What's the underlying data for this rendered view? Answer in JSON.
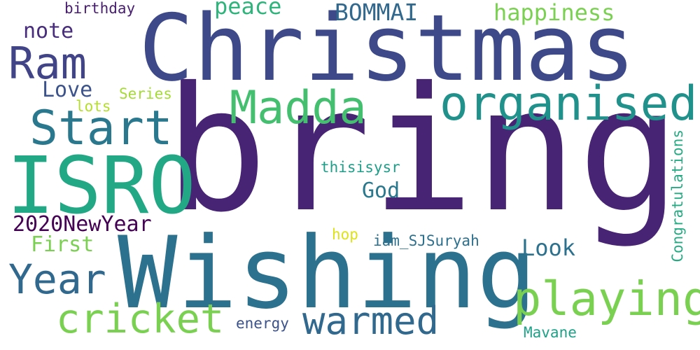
{
  "cloud": {
    "words": [
      {
        "text": "bring",
        "color": "#482475"
      },
      {
        "text": "Christmas",
        "color": "#3e4989"
      },
      {
        "text": "Wishing",
        "color": "#2c718e"
      },
      {
        "text": "ISRO",
        "color": "#22a884"
      },
      {
        "text": "organised",
        "color": "#21918c"
      },
      {
        "text": "Madda",
        "color": "#44bf70"
      },
      {
        "text": "Start",
        "color": "#2a788e"
      },
      {
        "text": "Ram",
        "color": "#414487"
      },
      {
        "text": "playing",
        "color": "#7ad151"
      },
      {
        "text": "cricket",
        "color": "#7ad151"
      },
      {
        "text": "warmed",
        "color": "#31688e"
      },
      {
        "text": "Year",
        "color": "#31688e"
      },
      {
        "text": "2020NewYear",
        "color": "#440154"
      },
      {
        "text": "happiness",
        "color": "#7ad151"
      },
      {
        "text": "BOMMAI",
        "color": "#31688e"
      },
      {
        "text": "peace",
        "color": "#2fb47c"
      },
      {
        "text": "note",
        "color": "#472d7b"
      },
      {
        "text": "Love",
        "color": "#3b528b"
      },
      {
        "text": "birthday",
        "color": "#481f70"
      },
      {
        "text": "Series",
        "color": "#a5db36"
      },
      {
        "text": "lots",
        "color": "#b5de2b"
      },
      {
        "text": "God",
        "color": "#2a788e"
      },
      {
        "text": "thisisysr",
        "color": "#1f9e89"
      },
      {
        "text": "First",
        "color": "#7ad151"
      },
      {
        "text": "Look",
        "color": "#2c718e"
      },
      {
        "text": "hop",
        "color": "#dde318"
      },
      {
        "text": "iam_SJSuryah",
        "color": "#2d708e"
      },
      {
        "text": "Congratulations",
        "color": "#25ab82"
      },
      {
        "text": "energy",
        "color": "#3b528b"
      },
      {
        "text": "Mavane",
        "color": "#1fa188"
      }
    ]
  }
}
